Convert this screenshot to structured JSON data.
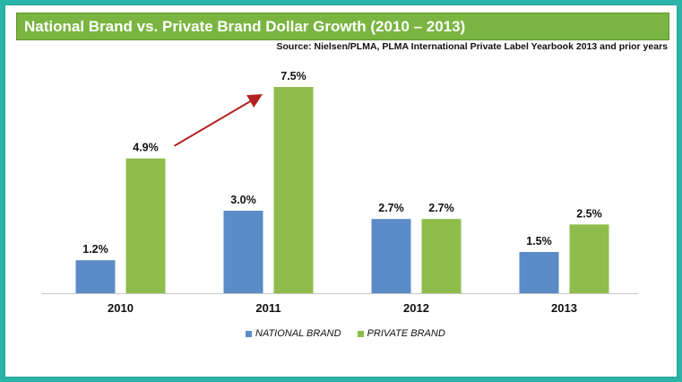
{
  "header": {
    "title": "National Brand vs. Private Brand Dollar Growth (2010 – 2013)",
    "source": "Source: Nielsen/PLMA, PLMA International Private Label Yearbook 2013 and prior years"
  },
  "colors": {
    "background": "#2bb5a8",
    "title_bar": "#7ab541",
    "national": "#5b8cc8",
    "private": "#8ebd4c",
    "arrow": "#b22222"
  },
  "chart_data": {
    "type": "bar",
    "title": "National Brand vs. Private Brand Dollar Growth (2010 – 2013)",
    "categories": [
      "2010",
      "2011",
      "2012",
      "2013"
    ],
    "series": [
      {
        "name": "NATIONAL BRAND",
        "values": [
          1.2,
          3.0,
          2.7,
          1.5
        ],
        "labels": [
          "1.2%",
          "3.0%",
          "2.7%",
          "1.5%"
        ]
      },
      {
        "name": "PRIVATE BRAND",
        "values": [
          4.9,
          7.5,
          2.7,
          2.5
        ],
        "labels": [
          "4.9%",
          "7.5%",
          "2.7%",
          "2.5%"
        ]
      }
    ],
    "ylim": [
      0,
      7.5
    ],
    "grid": false,
    "legend": "bottom",
    "annotation": "arrow pointing up from 2010 private brand to 2011 private brand"
  }
}
